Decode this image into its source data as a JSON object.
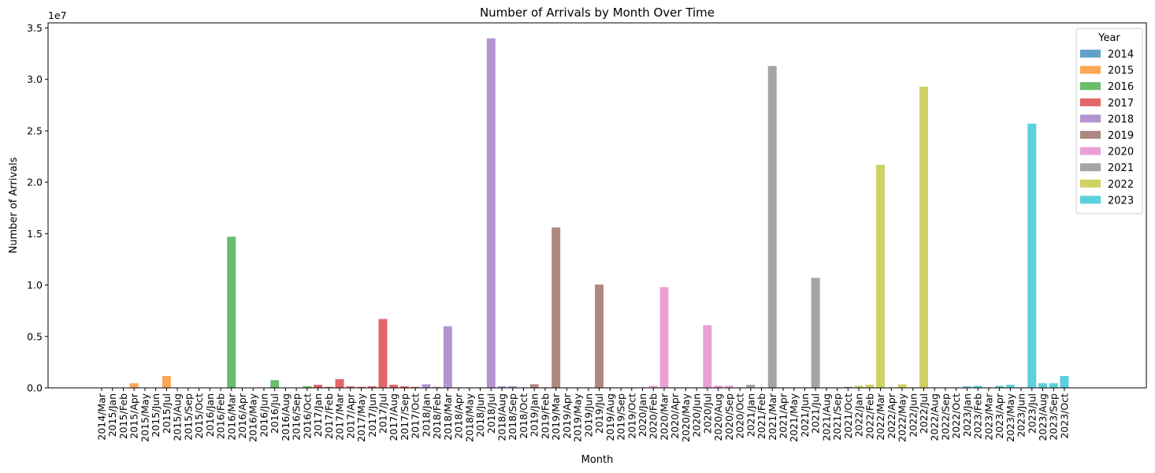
{
  "chart_data": {
    "type": "bar",
    "title": "Number of Arrivals by Month Over Time",
    "xlabel": "Month",
    "ylabel": "Number of Arrivals",
    "y_offset_label": "1e7",
    "ylim": [
      0,
      35500000
    ],
    "y_ticks": [
      0,
      5000000,
      10000000,
      15000000,
      20000000,
      25000000,
      30000000,
      35000000
    ],
    "y_tick_labels": [
      "0.0",
      "0.5",
      "1.0",
      "1.5",
      "2.0",
      "2.5",
      "3.0",
      "3.5"
    ],
    "grid": false,
    "legend_title": "Year",
    "legend_position": "top-right",
    "categories": [
      "2014/Mar",
      "2015/Jan",
      "2015/Feb",
      "2015/Apr",
      "2015/May",
      "2015/Jun",
      "2015/Jul",
      "2015/Aug",
      "2015/Sep",
      "2015/Oct",
      "2016/Jan",
      "2016/Feb",
      "2016/Mar",
      "2016/Apr",
      "2016/May",
      "2016/Jun",
      "2016/Jul",
      "2016/Aug",
      "2016/Sep",
      "2016/Oct",
      "2017/Jan",
      "2017/Feb",
      "2017/Mar",
      "2017/Apr",
      "2017/May",
      "2017/Jun",
      "2017/Jul",
      "2017/Aug",
      "2017/Sep",
      "2017/Oct",
      "2018/Jan",
      "2018/Feb",
      "2018/Mar",
      "2018/Apr",
      "2018/May",
      "2018/Jun",
      "2018/Jul",
      "2018/Aug",
      "2018/Sep",
      "2018/Oct",
      "2019/Jan",
      "2019/Feb",
      "2019/Mar",
      "2019/Apr",
      "2019/May",
      "2019/Jun",
      "2019/Jul",
      "2019/Aug",
      "2019/Sep",
      "2019/Oct",
      "2020/Jan",
      "2020/Feb",
      "2020/Mar",
      "2020/Apr",
      "2020/May",
      "2020/Jun",
      "2020/Jul",
      "2020/Aug",
      "2020/Sep",
      "2020/Oct",
      "2021/Jan",
      "2021/Feb",
      "2021/Mar",
      "2021/Apr",
      "2021/May",
      "2021/Jun",
      "2021/Jul",
      "2021/Aug",
      "2021/Sep",
      "2021/Oct",
      "2022/Jan",
      "2022/Feb",
      "2022/Mar",
      "2022/Apr",
      "2022/May",
      "2022/Jun",
      "2022/Jul",
      "2022/Aug",
      "2022/Sep",
      "2022/Oct",
      "2023/Jan",
      "2023/Feb",
      "2023/Mar",
      "2023/Apr",
      "2023/May",
      "2023/Jun",
      "2023/Jul",
      "2023/Aug",
      "2023/Sep",
      "2023/Oct"
    ],
    "values": [
      10000,
      20000,
      20000,
      450000,
      20000,
      20000,
      1150000,
      20000,
      20000,
      20000,
      20000,
      20000,
      14700000,
      20000,
      20000,
      20000,
      750000,
      20000,
      20000,
      150000,
      300000,
      100000,
      850000,
      150000,
      100000,
      150000,
      6700000,
      300000,
      150000,
      100000,
      350000,
      100000,
      6000000,
      50000,
      50000,
      50000,
      34000000,
      150000,
      150000,
      50000,
      350000,
      50000,
      15600000,
      50000,
      50000,
      50000,
      10050000,
      50000,
      50000,
      50000,
      50000,
      200000,
      9800000,
      50000,
      50000,
      50000,
      6100000,
      200000,
      200000,
      50000,
      300000,
      50000,
      31300000,
      50000,
      50000,
      50000,
      10700000,
      50000,
      50000,
      100000,
      200000,
      300000,
      21700000,
      50000,
      350000,
      50000,
      29300000,
      50000,
      50000,
      50000,
      150000,
      200000,
      50000,
      200000,
      300000,
      50000,
      25700000,
      450000,
      450000,
      1150000
    ],
    "years": [
      "2014",
      "2015",
      "2015",
      "2015",
      "2015",
      "2015",
      "2015",
      "2015",
      "2015",
      "2015",
      "2016",
      "2016",
      "2016",
      "2016",
      "2016",
      "2016",
      "2016",
      "2016",
      "2016",
      "2016",
      "2017",
      "2017",
      "2017",
      "2017",
      "2017",
      "2017",
      "2017",
      "2017",
      "2017",
      "2017",
      "2018",
      "2018",
      "2018",
      "2018",
      "2018",
      "2018",
      "2018",
      "2018",
      "2018",
      "2018",
      "2019",
      "2019",
      "2019",
      "2019",
      "2019",
      "2019",
      "2019",
      "2019",
      "2019",
      "2019",
      "2020",
      "2020",
      "2020",
      "2020",
      "2020",
      "2020",
      "2020",
      "2020",
      "2020",
      "2020",
      "2021",
      "2021",
      "2021",
      "2021",
      "2021",
      "2021",
      "2021",
      "2021",
      "2021",
      "2021",
      "2022",
      "2022",
      "2022",
      "2022",
      "2022",
      "2022",
      "2022",
      "2022",
      "2022",
      "2022",
      "2023",
      "2023",
      "2023",
      "2023",
      "2023",
      "2023",
      "2023",
      "2023",
      "2023",
      "2023"
    ],
    "series": [
      {
        "name": "2014",
        "color": "#1f77b4"
      },
      {
        "name": "2015",
        "color": "#ff7f0e"
      },
      {
        "name": "2016",
        "color": "#2ca02c"
      },
      {
        "name": "2017",
        "color": "#d62728"
      },
      {
        "name": "2018",
        "color": "#9467bd"
      },
      {
        "name": "2019",
        "color": "#8c564b"
      },
      {
        "name": "2020",
        "color": "#e377c2"
      },
      {
        "name": "2021",
        "color": "#7f7f7f"
      },
      {
        "name": "2022",
        "color": "#bcbd22"
      },
      {
        "name": "2023",
        "color": "#17becf"
      }
    ],
    "bar_opacity": 0.7
  }
}
